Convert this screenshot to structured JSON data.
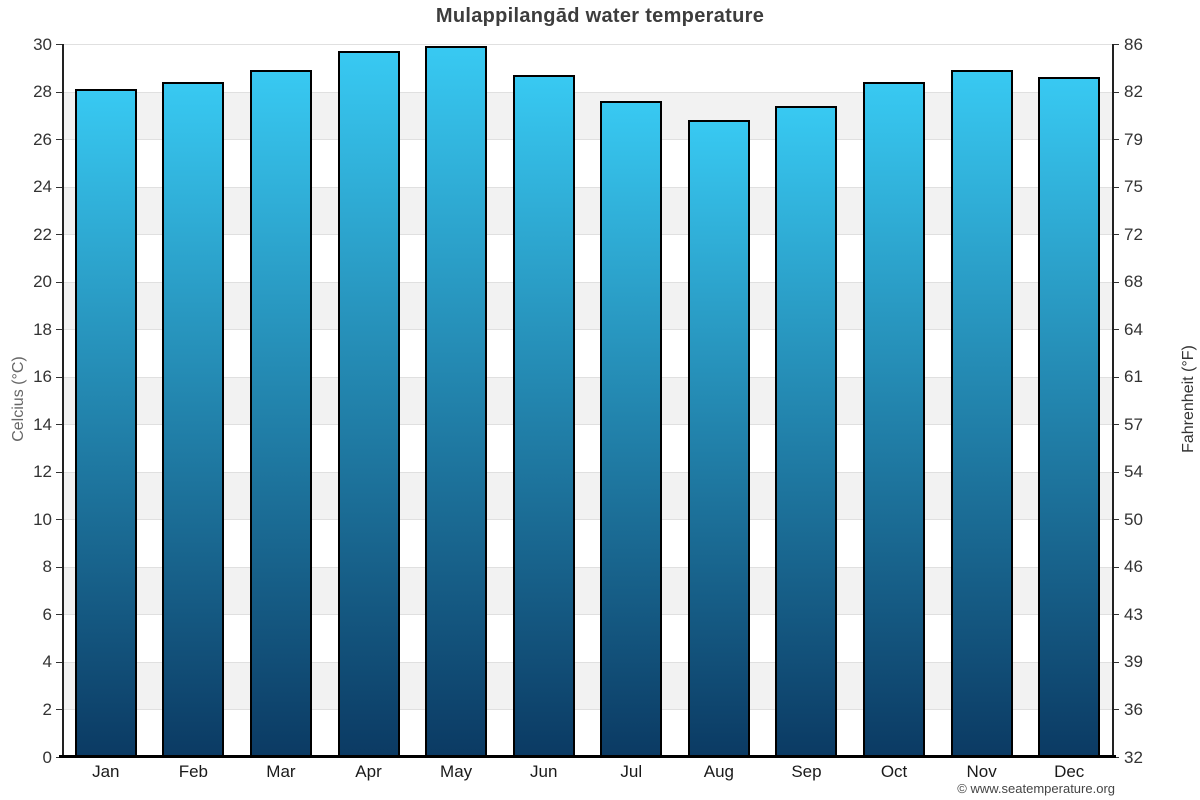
{
  "page": {
    "footer": "© www.seatemperature.org"
  },
  "chart_data": {
    "type": "bar",
    "title": "Mulappilangād water temperature",
    "categories": [
      "Jan",
      "Feb",
      "Mar",
      "Apr",
      "May",
      "Jun",
      "Jul",
      "Aug",
      "Sep",
      "Oct",
      "Nov",
      "Dec"
    ],
    "values": [
      28.1,
      28.4,
      28.9,
      29.7,
      29.9,
      28.7,
      27.6,
      26.8,
      27.4,
      28.4,
      28.9,
      28.6
    ],
    "xlabel": "",
    "ylabel_left": "Celcius (°C)",
    "ylabel_right": "Fahrenheit (°F)",
    "ylim": [
      0,
      30
    ],
    "ytick_step_celsius": 2,
    "yticks_celsius": [
      0,
      2,
      4,
      6,
      8,
      10,
      12,
      14,
      16,
      18,
      20,
      22,
      24,
      26,
      28,
      30
    ],
    "yticks_fahrenheit": [
      32,
      36,
      39,
      43,
      46,
      50,
      54,
      57,
      61,
      64,
      68,
      72,
      75,
      79,
      82,
      86
    ],
    "grid": "alternating-horizontal-bands",
    "legend": "none",
    "colors": {
      "bar_gradient_top": "#38c9f2",
      "bar_gradient_bottom": "#0b3a63",
      "bar_border": "#000000",
      "band_gray": "#f2f2f2",
      "band_white": "#ffffff",
      "gridline": "#e0e0e0",
      "title_text": "#3d3d3d",
      "tick_text": "#333333"
    }
  }
}
